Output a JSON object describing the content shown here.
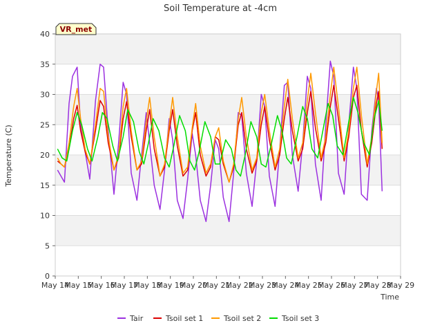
{
  "chart_data": {
    "type": "line",
    "title": "Soil Temperature at -4cm",
    "xlabel": "Time",
    "ylabel": "Temperature (C)",
    "ylim": [
      0,
      40
    ],
    "yticks": [
      0,
      5,
      10,
      15,
      20,
      25,
      30,
      35,
      40
    ],
    "xlim": [
      "May 14",
      "May 29"
    ],
    "xticks": [
      "May 14",
      "May 15",
      "May 16",
      "May 17",
      "May 18",
      "May 19",
      "May 20",
      "May 21",
      "May 22",
      "May 23",
      "May 24",
      "May 25",
      "May 26",
      "May 27",
      "May 28",
      "May 29"
    ],
    "station_badge": "VR_met",
    "grid": "horizontal bands",
    "legend_position": "bottom",
    "x_unit": "day of May",
    "series": [
      {
        "name": "Tair",
        "color": "#9b30e0",
        "x": [
          14.1,
          14.25,
          14.4,
          14.6,
          14.75,
          14.95,
          15.1,
          15.3,
          15.5,
          15.75,
          15.95,
          16.1,
          16.3,
          16.55,
          16.75,
          16.95,
          17.1,
          17.3,
          17.55,
          17.75,
          17.95,
          18.1,
          18.3,
          18.55,
          18.75,
          18.95,
          19.1,
          19.3,
          19.55,
          19.75,
          19.95,
          20.1,
          20.3,
          20.55,
          20.75,
          20.95,
          21.1,
          21.3,
          21.55,
          21.75,
          21.95,
          22.1,
          22.3,
          22.55,
          22.75,
          22.95,
          23.1,
          23.3,
          23.55,
          23.75,
          23.95,
          24.1,
          24.3,
          24.55,
          24.75,
          24.95,
          25.1,
          25.3,
          25.55,
          25.75,
          25.95,
          26.1,
          26.3,
          26.55,
          26.75,
          26.95,
          27.1,
          27.3,
          27.55,
          27.75,
          27.95,
          28.05,
          28.2
        ],
        "values": [
          17.5,
          16.5,
          15.5,
          28.5,
          33,
          34.5,
          25,
          20.5,
          16,
          29,
          35,
          34.5,
          24,
          13.5,
          22,
          32,
          30,
          17,
          12.5,
          20,
          27,
          22,
          15,
          11,
          17.5,
          26,
          22.5,
          12.5,
          9.5,
          16,
          23.5,
          20,
          12.5,
          9,
          15,
          22.5,
          21,
          13,
          9,
          17,
          27,
          26.5,
          17,
          11.5,
          19,
          30,
          28,
          16.5,
          11.5,
          21,
          31.5,
          32,
          20,
          14,
          22,
          33,
          31,
          18.5,
          12.5,
          25,
          35.5,
          33,
          17,
          13.5,
          25,
          34.5,
          31,
          13.5,
          12.5,
          24,
          31,
          29,
          14
        ]
      },
      {
        "name": "Tsoil set 1",
        "color": "#dd0000",
        "x": [
          14.1,
          14.25,
          14.4,
          14.6,
          14.8,
          14.95,
          15.1,
          15.3,
          15.5,
          15.75,
          15.95,
          16.1,
          16.3,
          16.55,
          16.75,
          16.95,
          17.1,
          17.3,
          17.55,
          17.75,
          17.95,
          18.1,
          18.3,
          18.55,
          18.75,
          18.95,
          19.1,
          19.3,
          19.55,
          19.75,
          19.95,
          20.1,
          20.3,
          20.55,
          20.75,
          20.95,
          21.1,
          21.3,
          21.55,
          21.75,
          21.95,
          22.1,
          22.3,
          22.55,
          22.75,
          22.95,
          23.1,
          23.3,
          23.55,
          23.75,
          23.95,
          24.1,
          24.3,
          24.55,
          24.75,
          24.95,
          25.1,
          25.3,
          25.55,
          25.75,
          25.95,
          26.1,
          26.3,
          26.55,
          26.75,
          26.95,
          27.1,
          27.3,
          27.55,
          27.75,
          27.95,
          28.05,
          28.2
        ],
        "values": [
          19,
          18.5,
          18,
          21,
          26,
          28.2,
          24,
          20.5,
          18.5,
          24,
          29,
          28,
          22,
          17.5,
          19.5,
          26,
          28.8,
          23,
          17.5,
          18.5,
          24,
          27.5,
          21,
          16.5,
          18,
          24,
          27.5,
          21.5,
          16.5,
          17.5,
          24,
          27,
          20,
          16.5,
          18,
          23,
          22.5,
          18.5,
          15.5,
          18,
          25,
          27,
          21,
          17,
          19,
          25,
          28,
          22.5,
          17.5,
          20,
          26,
          29.5,
          24,
          19,
          21,
          27,
          30.5,
          24.5,
          19,
          22,
          28,
          31.5,
          26,
          19,
          23,
          29.5,
          31.5,
          24,
          18,
          22,
          28.5,
          30.5,
          21
        ]
      },
      {
        "name": "Tsoil set 2",
        "color": "#ff9900",
        "x": [
          14.1,
          14.25,
          14.4,
          14.6,
          14.8,
          14.95,
          15.1,
          15.3,
          15.5,
          15.75,
          15.95,
          16.1,
          16.3,
          16.55,
          16.75,
          16.95,
          17.1,
          17.3,
          17.55,
          17.75,
          17.95,
          18.1,
          18.3,
          18.55,
          18.75,
          18.95,
          19.1,
          19.3,
          19.55,
          19.75,
          19.95,
          20.1,
          20.3,
          20.55,
          20.75,
          20.95,
          21.1,
          21.3,
          21.55,
          21.75,
          21.95,
          22.1,
          22.3,
          22.55,
          22.75,
          22.95,
          23.1,
          23.3,
          23.55,
          23.75,
          23.95,
          24.1,
          24.3,
          24.55,
          24.75,
          24.95,
          25.1,
          25.3,
          25.55,
          25.75,
          25.95,
          26.1,
          26.3,
          26.55,
          26.75,
          26.95,
          27.1,
          27.3,
          27.55,
          27.75,
          27.95,
          28.05,
          28.2
        ],
        "values": [
          19.5,
          18.5,
          18,
          22,
          28,
          31,
          26,
          21,
          18.5,
          25,
          31,
          30.5,
          23,
          17.5,
          20,
          28,
          31,
          24,
          17.5,
          19,
          25.5,
          29.5,
          23,
          16.5,
          18.5,
          25,
          29.5,
          23,
          17,
          18,
          24.5,
          28.5,
          21.5,
          17,
          18.5,
          23,
          24.5,
          19,
          15.5,
          18.5,
          26,
          29.5,
          23,
          17.5,
          19.5,
          27,
          30,
          24,
          18,
          21,
          28,
          32.5,
          26,
          19.5,
          22,
          29,
          33.5,
          27,
          19.5,
          23,
          30,
          34.5,
          28,
          19.5,
          24,
          31,
          34.5,
          26.5,
          18.5,
          23,
          30.5,
          33.5,
          22
        ]
      },
      {
        "name": "Tsoil set 3",
        "color": "#00dd00",
        "x": [
          14.1,
          14.3,
          14.5,
          14.75,
          14.95,
          15.15,
          15.4,
          15.6,
          15.85,
          16.05,
          16.25,
          16.5,
          16.7,
          16.95,
          17.15,
          17.4,
          17.65,
          17.85,
          18.05,
          18.25,
          18.5,
          18.75,
          18.95,
          19.15,
          19.4,
          19.65,
          19.85,
          20.05,
          20.25,
          20.5,
          20.75,
          20.95,
          21.15,
          21.4,
          21.65,
          21.85,
          22.05,
          22.25,
          22.5,
          22.75,
          22.95,
          23.15,
          23.4,
          23.65,
          23.85,
          24.05,
          24.25,
          24.5,
          24.75,
          24.95,
          25.15,
          25.4,
          25.65,
          25.85,
          26.05,
          26.25,
          26.5,
          26.75,
          26.95,
          27.15,
          27.4,
          27.65,
          27.85,
          28.05,
          28.2
        ],
        "values": [
          21,
          19.5,
          19,
          24,
          27,
          25,
          21,
          19,
          23,
          27,
          26,
          21.5,
          19,
          23,
          27.5,
          25.5,
          20.5,
          18.5,
          22,
          26,
          24,
          19.5,
          18,
          21.5,
          26.5,
          24,
          19,
          17.5,
          20.5,
          25.5,
          23,
          18.5,
          18.5,
          22.5,
          21,
          17.5,
          16.5,
          20,
          25.5,
          23,
          18.5,
          18,
          22,
          26.5,
          24,
          19.5,
          18.5,
          23,
          28,
          26,
          21,
          19.5,
          24.5,
          28.5,
          26.5,
          21.5,
          20,
          25.5,
          29.5,
          27,
          22,
          20,
          26,
          29,
          24
        ]
      }
    ]
  }
}
